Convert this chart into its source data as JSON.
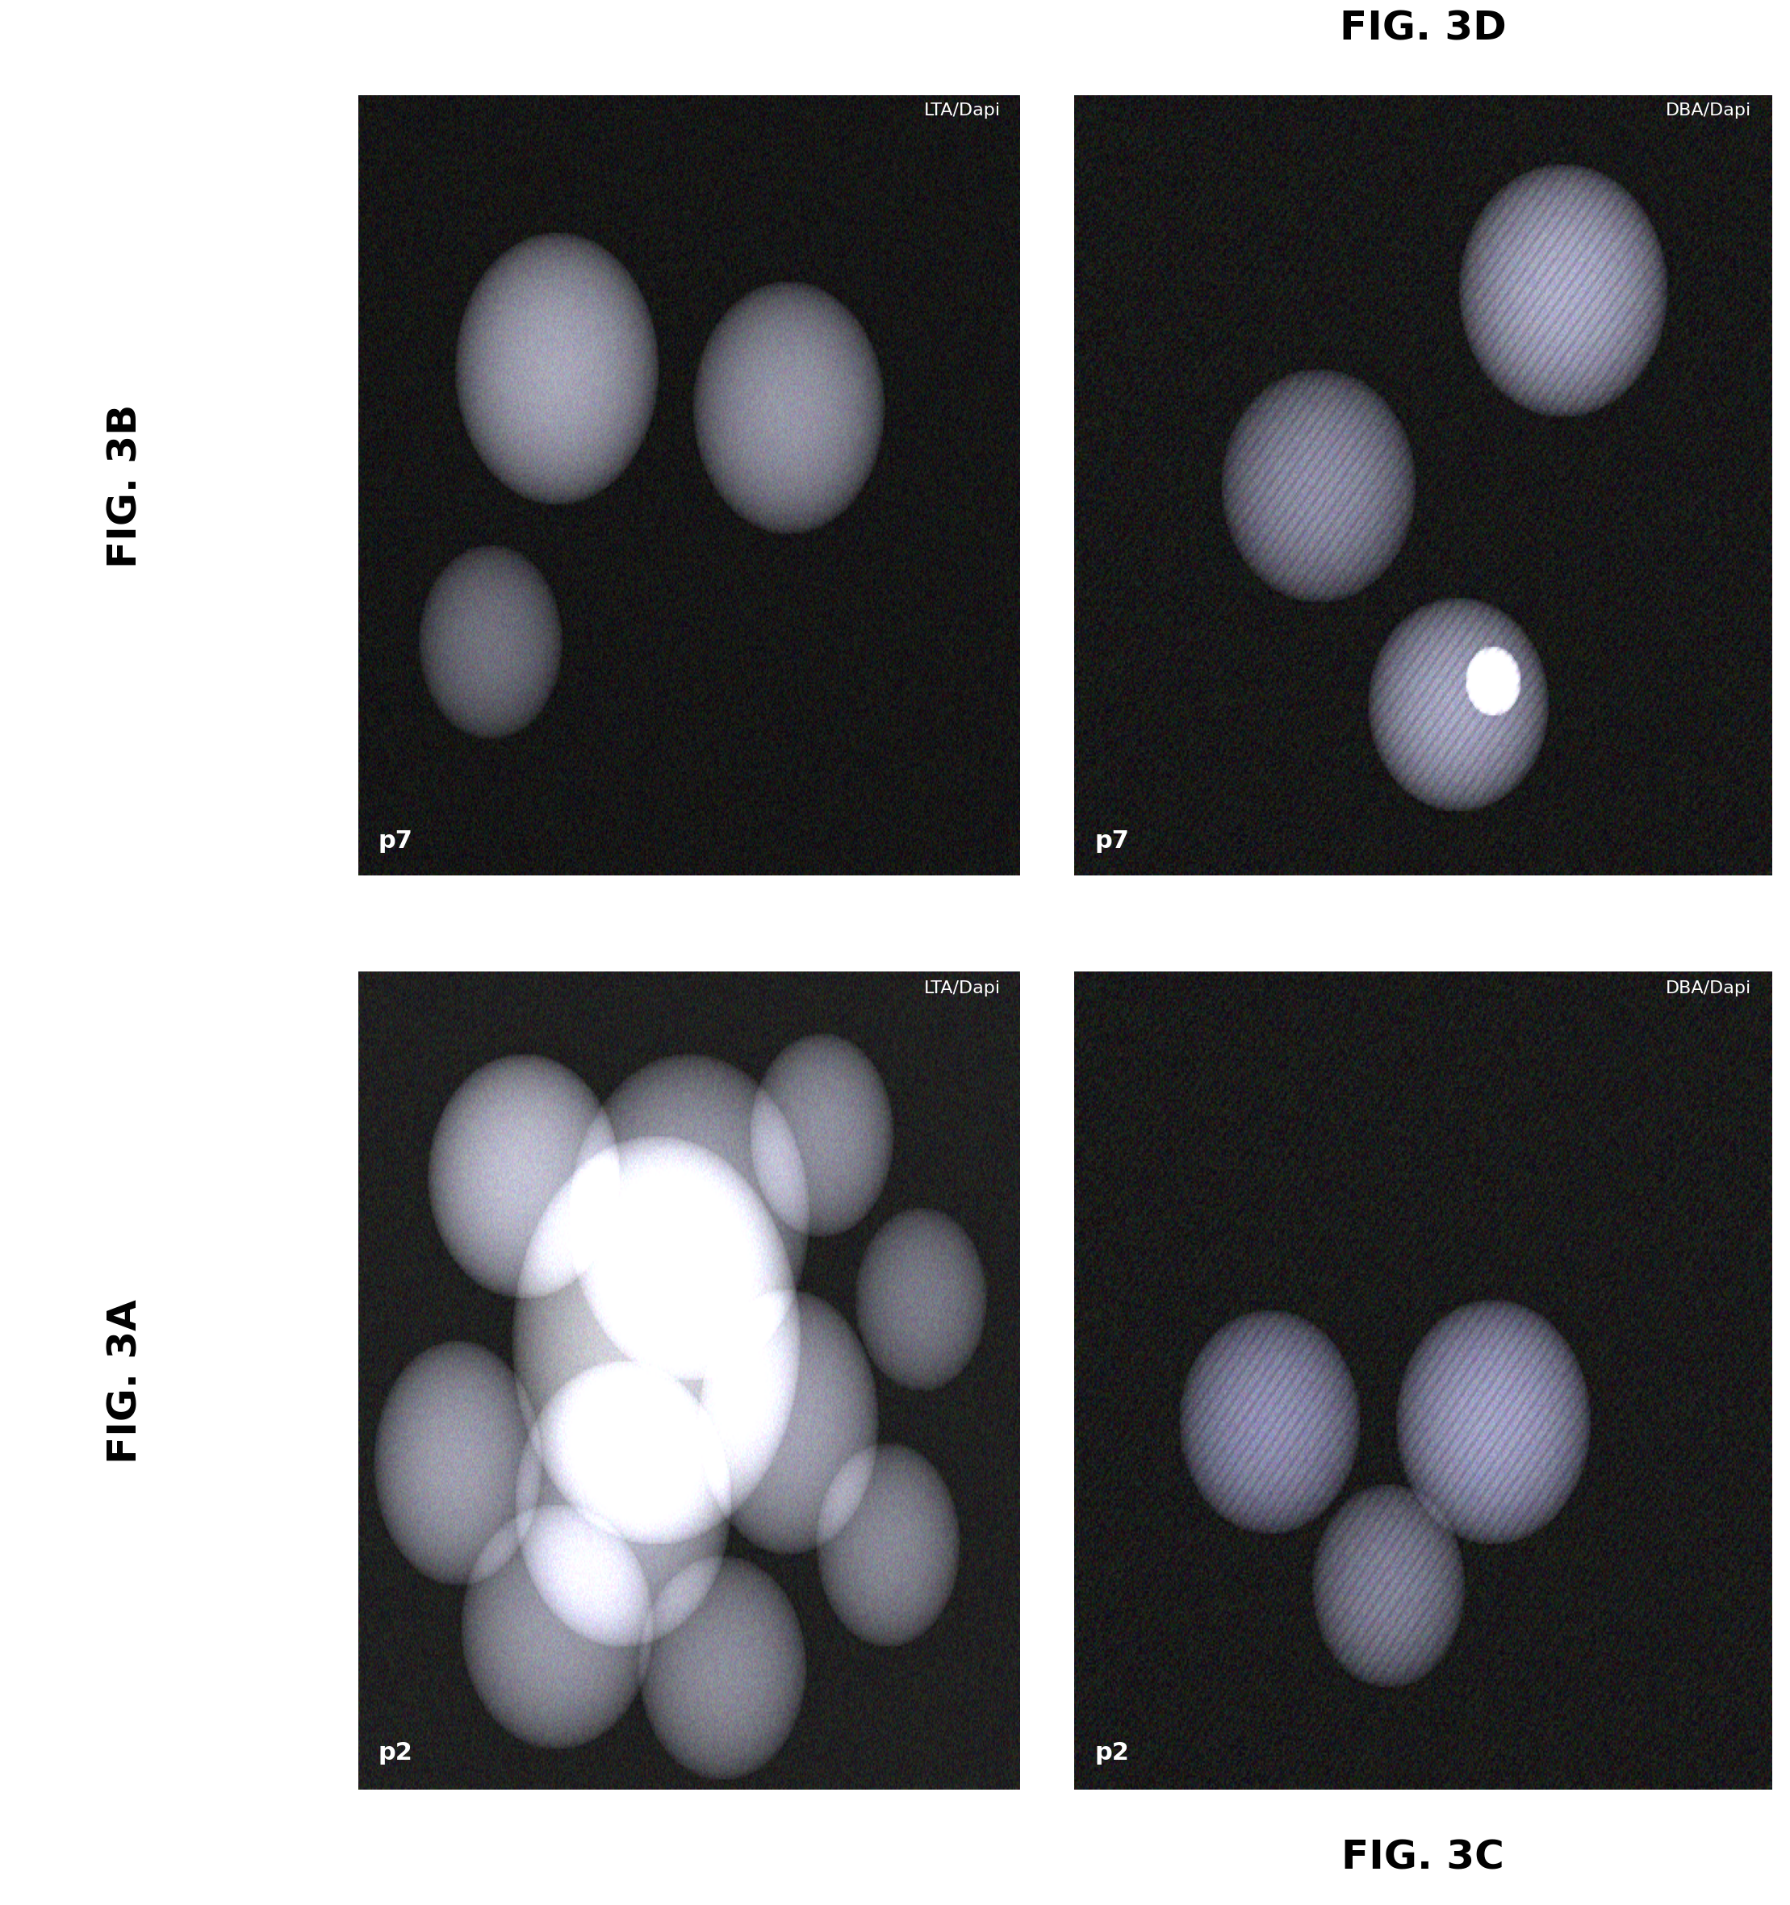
{
  "fig_labels": [
    "FIG. 3A",
    "FIG. 3B",
    "FIG. 3C",
    "FIG. 3D"
  ],
  "panel_labels_top_left": [
    "p2",
    "p7",
    "p2",
    "p7"
  ],
  "panel_labels_bottom_right": [
    "LTA/Dapi",
    "LTA/Dapi",
    "DBA/Dapi",
    "DBA/Dapi"
  ],
  "background_color": "#ffffff",
  "panel_bg_3A": "#2a2a2a",
  "panel_bg_3B": "#1a1a1a",
  "panel_bg_3C": "#252525",
  "panel_bg_3D": "#1e1e1e",
  "fig_label_fontsize": 36,
  "panel_label_fontsize": 22,
  "annotation_fontsize": 16
}
